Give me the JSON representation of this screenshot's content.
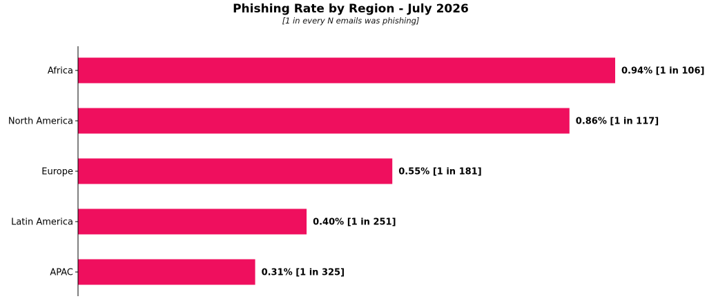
{
  "chart_data": {
    "type": "bar",
    "orientation": "horizontal",
    "title": "Phishing Rate by Region - July 2026",
    "subtitle": "[1 in every N emails was phishing]",
    "xlabel": "",
    "ylabel": "",
    "categories": [
      "Africa",
      "North America",
      "Europe",
      "Latin America",
      "APAC"
    ],
    "values": [
      0.94,
      0.86,
      0.55,
      0.4,
      0.31
    ],
    "labels": [
      "0.94% [1 in 106]",
      "0.86% [1 in 117]",
      "0.55% [1 in 181]",
      "0.40% [1 in 251]",
      "0.31% [1 in 325]"
    ],
    "xlim": [
      0,
      0.94
    ],
    "grid": false,
    "legend": "none",
    "colors": {
      "bar": "#ef0f5e",
      "axis": "#000000",
      "text": "#000000"
    }
  }
}
